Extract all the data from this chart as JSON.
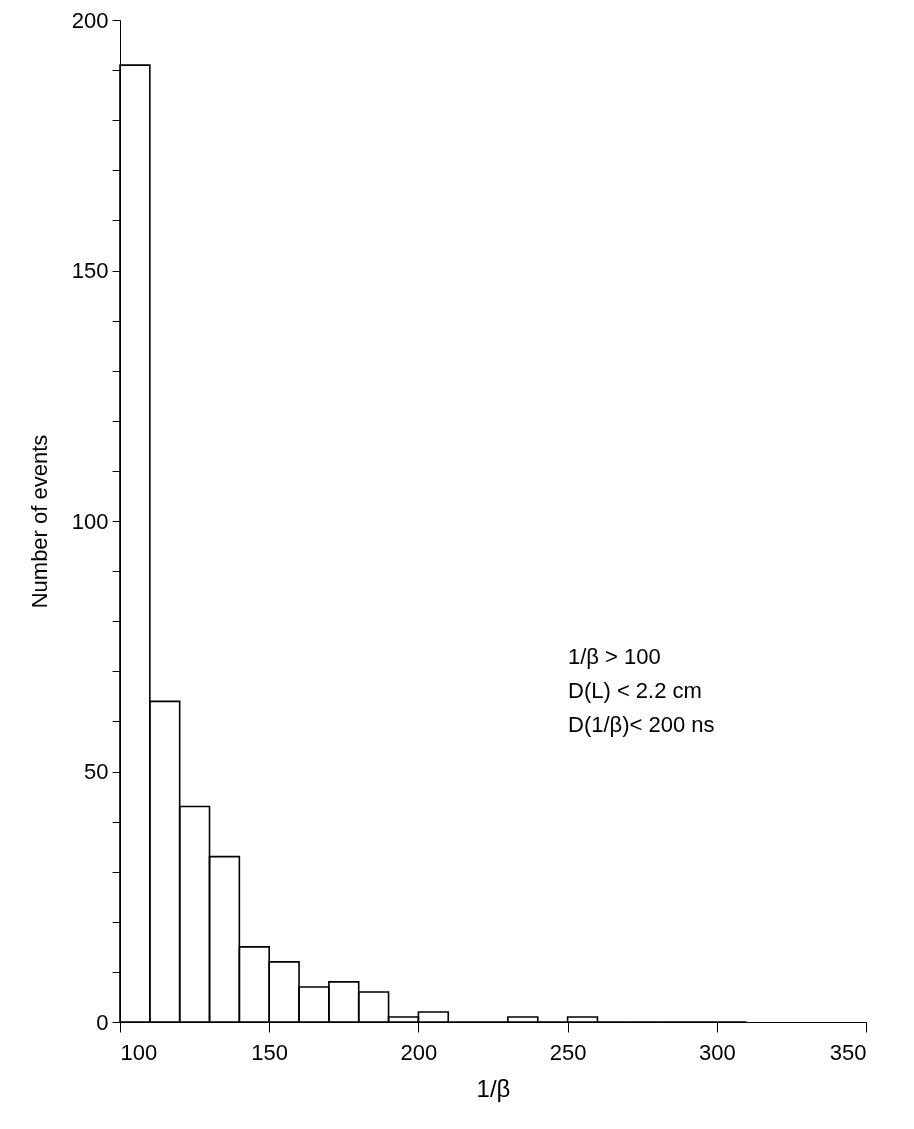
{
  "chart_data": {
    "type": "histogram",
    "xlabel": "1/β",
    "ylabel": "Number of events",
    "bins": [
      100,
      110,
      120,
      130,
      140,
      150,
      160,
      170,
      180,
      190,
      200,
      210,
      220,
      230,
      240,
      250,
      260,
      270,
      280,
      290,
      300,
      310
    ],
    "values": [
      191,
      64,
      43,
      33,
      15,
      12,
      7,
      8,
      6,
      1,
      2,
      0,
      0,
      1,
      0,
      1,
      0,
      0,
      0,
      0,
      0
    ],
    "color": "#000000",
    "xlim": [
      100,
      350
    ],
    "xticks": [
      100,
      150,
      200,
      250,
      300,
      350
    ],
    "ylim": [
      0,
      200
    ],
    "yticks": [
      0,
      {
        "value": 10,
        "label": null
      },
      {
        "value": 20,
        "label": null
      },
      {
        "value": 30,
        "label": null
      },
      {
        "value": 40,
        "label": null
      },
      50,
      {
        "value": 60,
        "label": null
      },
      {
        "value": 70,
        "label": null
      },
      {
        "value": 80,
        "label": null
      },
      {
        "value": 90,
        "label": null
      },
      100,
      {
        "value": 110,
        "label": null
      },
      {
        "value": 120,
        "label": null
      },
      {
        "value": 130,
        "label": null
      },
      {
        "value": 140,
        "label": null
      },
      150,
      {
        "value": 160,
        "label": null
      },
      {
        "value": 170,
        "label": null
      },
      {
        "value": 180,
        "label": null
      },
      {
        "value": 190,
        "label": null
      },
      200
    ],
    "annotations": [
      "1/β > 100",
      "D(L) <  2.2 cm",
      "D(1/β)< 200 ns"
    ],
    "grid": false
  }
}
